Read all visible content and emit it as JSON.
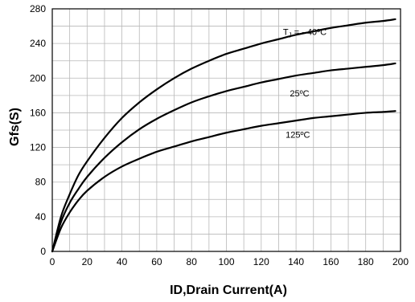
{
  "chart_data": {
    "type": "line",
    "title": "",
    "xlabel": "ID,Drain Current(A)",
    "ylabel": "Gfs(S)",
    "xlim": [
      0,
      200
    ],
    "ylim": [
      0,
      280
    ],
    "xticks": [
      0,
      20,
      40,
      60,
      80,
      100,
      120,
      140,
      160,
      180,
      200
    ],
    "yticks": [
      0,
      40,
      80,
      120,
      160,
      200,
      240,
      280
    ],
    "grid": true,
    "series": [
      {
        "name": "TJ = - 40ºC",
        "x": [
          0,
          5,
          10,
          15,
          20,
          30,
          40,
          50,
          60,
          70,
          80,
          90,
          100,
          110,
          120,
          130,
          140,
          150,
          160,
          170,
          180,
          190,
          197
        ],
        "y": [
          0,
          40,
          66,
          88,
          104,
          131,
          154,
          172,
          187,
          200,
          211,
          220,
          228,
          234,
          240,
          245,
          250,
          254,
          258,
          261,
          264,
          266,
          268
        ]
      },
      {
        "name": "25ºC",
        "x": [
          0,
          5,
          10,
          15,
          20,
          30,
          40,
          50,
          60,
          70,
          80,
          90,
          100,
          110,
          120,
          130,
          140,
          150,
          160,
          170,
          180,
          190,
          197
        ],
        "y": [
          0,
          34,
          56,
          72,
          86,
          108,
          126,
          141,
          153,
          163,
          172,
          179,
          185,
          190,
          195,
          199,
          203,
          206,
          209,
          211,
          213,
          215,
          217
        ]
      },
      {
        "name": "125ºC",
        "x": [
          0,
          5,
          10,
          15,
          20,
          30,
          40,
          50,
          60,
          70,
          80,
          90,
          100,
          110,
          120,
          130,
          140,
          150,
          160,
          170,
          180,
          190,
          197
        ],
        "y": [
          0,
          27,
          45,
          59,
          70,
          86,
          98,
          107,
          115,
          121,
          127,
          132,
          137,
          141,
          145,
          148,
          151,
          154,
          156,
          158,
          160,
          161,
          162
        ]
      }
    ],
    "annotations": [
      {
        "series": 0,
        "prefix": "T",
        "subscript": "J",
        "suffix": " = - 40ºC",
        "x": 145,
        "y": 250
      },
      {
        "series": 1,
        "text": "25ºC",
        "x": 142,
        "y": 179
      },
      {
        "series": 2,
        "text": "125ºC",
        "x": 141,
        "y": 131
      }
    ]
  }
}
